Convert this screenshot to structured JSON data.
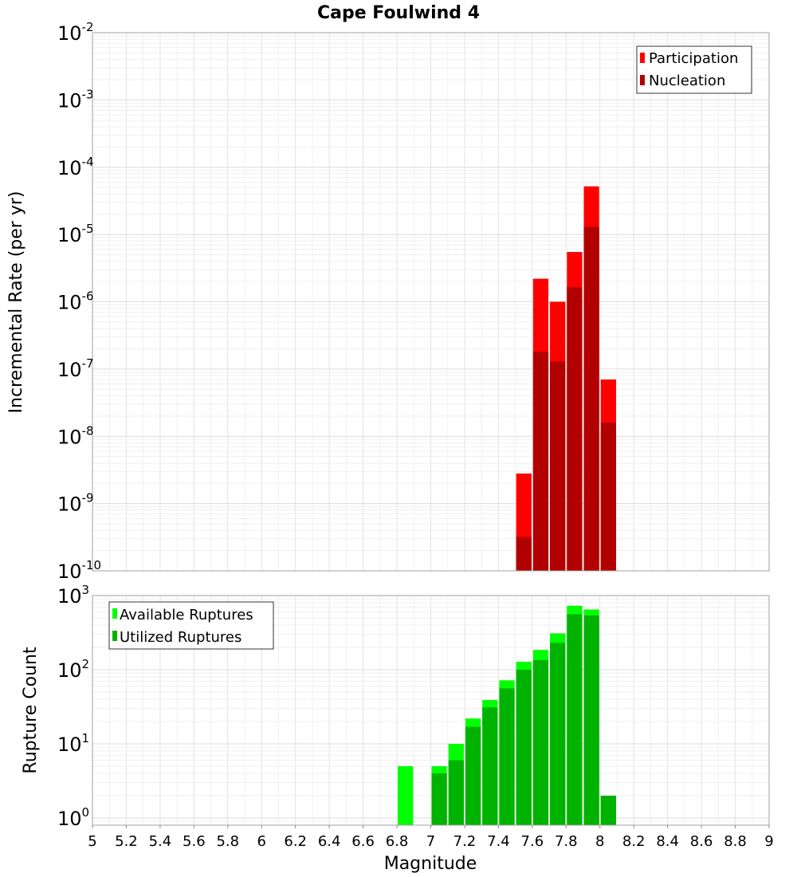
{
  "chart_data": [
    {
      "type": "bar",
      "title": "Cape Foulwind 4",
      "xlabel": "",
      "ylabel": "Incremental Rate (per yr)",
      "yscale": "log",
      "xlim": [
        5,
        9
      ],
      "ylim": [
        1e-10,
        0.01
      ],
      "ytick_exponents": [
        "-2",
        "-3",
        "-4",
        "-5",
        "-6",
        "-7",
        "-8",
        "-9",
        "-10"
      ],
      "bar_width": 0.1,
      "legend_position": "top-right",
      "grid": true,
      "series": [
        {
          "name": "Participation",
          "color": "#ff0000",
          "x": [
            7.55,
            7.65,
            7.75,
            7.85,
            7.95,
            8.05
          ],
          "values": [
            2.8e-09,
            2.2e-06,
            1e-06,
            5.5e-06,
            5.2e-05,
            7e-08
          ]
        },
        {
          "name": "Nucleation",
          "color": "#b20000",
          "x": [
            7.55,
            7.65,
            7.75,
            7.85,
            7.95,
            8.05
          ],
          "values": [
            3.2e-10,
            1.8e-07,
            1.3e-07,
            1.65e-06,
            1.3e-05,
            1.6e-08
          ]
        }
      ]
    },
    {
      "type": "bar",
      "title": "",
      "xlabel": "Magnitude",
      "ylabel": "Rupture Count",
      "yscale": "log",
      "xlim": [
        5,
        9
      ],
      "ylim": [
        0.8,
        1000
      ],
      "ytick_exponents": [
        "3",
        "2",
        "1",
        "0"
      ],
      "xticks": [
        "5",
        "5.2",
        "5.4",
        "5.6",
        "5.8",
        "6",
        "6.2",
        "6.4",
        "6.6",
        "6.8",
        "7",
        "7.2",
        "7.4",
        "7.6",
        "7.8",
        "8",
        "8.2",
        "8.4",
        "8.6",
        "8.8",
        "9"
      ],
      "bar_width": 0.1,
      "legend_position": "top-left",
      "grid": true,
      "series": [
        {
          "name": "Available Ruptures",
          "color": "#00ff00",
          "x": [
            6.85,
            7.05,
            7.15,
            7.25,
            7.35,
            7.45,
            7.55,
            7.65,
            7.75,
            7.85,
            7.95,
            8.05
          ],
          "values": [
            5,
            5,
            10,
            22,
            39,
            72,
            128,
            185,
            310,
            730,
            650,
            2
          ]
        },
        {
          "name": "Utilized Ruptures",
          "color": "#00b200",
          "x": [
            6.85,
            7.05,
            7.15,
            7.25,
            7.35,
            7.45,
            7.55,
            7.65,
            7.75,
            7.85,
            7.95,
            8.05
          ],
          "values": [
            0,
            4,
            6,
            17,
            31,
            56,
            100,
            135,
            230,
            560,
            540,
            2
          ]
        }
      ]
    }
  ]
}
